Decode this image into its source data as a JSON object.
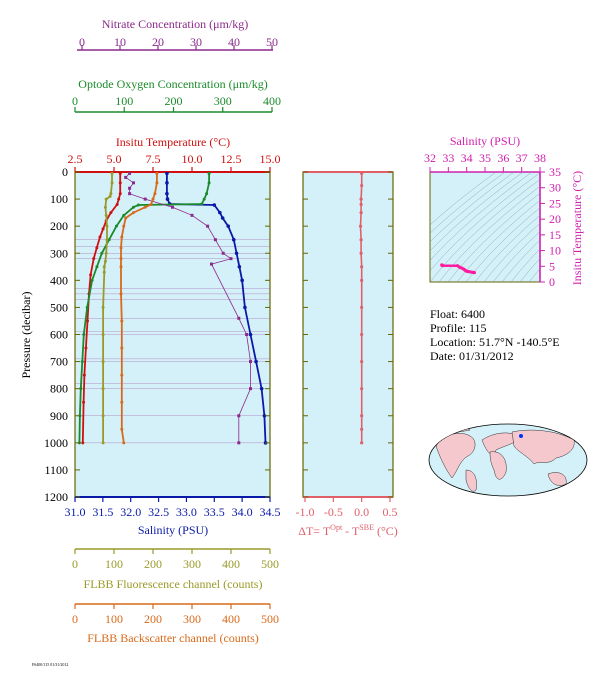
{
  "colors": {
    "plot_bg": "#d4f0f8",
    "nitrate": "#8b2a8b",
    "oxygen": "#1a8a2a",
    "temperature": "#d01010",
    "salinity": "#0a1aa8",
    "fluorescence": "#9a9a2a",
    "backscatter": "#d86a1a",
    "ts_axis": "#d020b0",
    "dt": "#e0606a",
    "land": "#f4c8cc",
    "frame": "#666600"
  },
  "axes": {
    "nitrate": {
      "label": "Nitrate Concentration (μm/kg)",
      "ticks": [
        "0",
        "10",
        "20",
        "30",
        "40",
        "50"
      ]
    },
    "oxygen": {
      "label": "Optode Oxygen Concentration (μm/kg)",
      "ticks": [
        "0",
        "100",
        "200",
        "300",
        "400"
      ]
    },
    "temperature": {
      "label": "Insitu Temperature (°C)",
      "ticks": [
        "2.5",
        "5.0",
        "7.5",
        "10.0",
        "12.5",
        "15.0"
      ]
    },
    "pressure": {
      "label": "Pressure (decibar)",
      "ticks": [
        "0",
        "100",
        "200",
        "300",
        "400",
        "500",
        "600",
        "700",
        "800",
        "900",
        "1000",
        "1100",
        "1200"
      ]
    },
    "salinity": {
      "label": "Salinity (PSU)",
      "ticks": [
        "31.0",
        "31.5",
        "32.0",
        "32.5",
        "33.0",
        "33.5",
        "34.0",
        "34.5"
      ]
    },
    "fluorescence": {
      "label": "FLBB Fluorescence channel (counts)",
      "ticks": [
        "0",
        "100",
        "200",
        "300",
        "400",
        "500"
      ]
    },
    "backscatter": {
      "label": "FLBB Backscatter channel (counts)",
      "ticks": [
        "0",
        "100",
        "200",
        "300",
        "400",
        "500"
      ]
    },
    "dt": {
      "label_main": "ΔT= T",
      "sup1": "Opt",
      "label_mid": " - T",
      "sup2": "SBE",
      "label_unit": " (°C)",
      "ticks": [
        "-1.0",
        "-0.5",
        "0.0",
        "0.5"
      ]
    },
    "ts_salinity": {
      "label": "Salinity (PSU)",
      "ticks": [
        "32",
        "33",
        "34",
        "35",
        "36",
        "37",
        "38"
      ]
    },
    "ts_temperature": {
      "label": "Insitu Temperature (°C)",
      "ticks": [
        "0",
        "5",
        "10",
        "15",
        "20",
        "25",
        "30",
        "35"
      ]
    }
  },
  "info": {
    "float": "Float:  6400",
    "profile": "Profile:  115",
    "location": "Location:  51.7°N  -140.5°E",
    "date": "Date:  01/31/2012"
  },
  "footer": "F6400/115 01/31/2012",
  "chart_data": {
    "type": "line",
    "pressure_range": [
      0,
      1200
    ],
    "series": [
      {
        "name": "Insitu Temperature (°C)",
        "x": [
          5.4,
          5.4,
          5.4,
          5.3,
          5.2,
          4.8,
          4.5,
          4.3,
          4.1,
          3.9,
          3.7,
          3.5,
          3.4,
          3.3,
          3.2,
          3.1,
          3.05,
          3.0
        ],
        "p": [
          5,
          40,
          80,
          100,
          120,
          150,
          180,
          210,
          240,
          280,
          320,
          380,
          450,
          550,
          650,
          750,
          850,
          1000
        ]
      },
      {
        "name": "Salinity (PSU)",
        "x": [
          32.65,
          32.65,
          32.65,
          32.66,
          32.7,
          33.5,
          33.6,
          33.65,
          33.75,
          33.85,
          33.9,
          33.95,
          34.0,
          34.05,
          34.15,
          34.25,
          34.35,
          34.4,
          34.42
        ],
        "p": [
          5,
          40,
          80,
          100,
          118,
          122,
          150,
          170,
          200,
          250,
          300,
          350,
          400,
          500,
          600,
          700,
          800,
          900,
          1000
        ]
      },
      {
        "name": "Optode Oxygen Concentration (μm/kg)",
        "x": [
          275,
          275,
          270,
          265,
          260,
          130,
          120,
          100,
          85,
          70,
          55,
          45,
          35,
          25,
          18,
          15,
          12,
          10,
          9
        ],
        "p": [
          5,
          40,
          80,
          100,
          118,
          122,
          130,
          160,
          200,
          250,
          300,
          350,
          400,
          500,
          600,
          700,
          800,
          900,
          1000
        ]
      },
      {
        "name": "Nitrate Concentration (μm/kg)",
        "x": [
          14,
          13,
          15,
          14,
          14,
          18,
          25,
          30,
          34,
          36,
          38,
          40,
          35,
          42,
          44,
          45,
          45,
          42,
          42
        ],
        "p": [
          5,
          20,
          40,
          60,
          80,
          100,
          130,
          160,
          200,
          250,
          300,
          320,
          340,
          540,
          600,
          700,
          800,
          900,
          1000
        ]
      },
      {
        "name": "FLBB Fluorescence channel (counts)",
        "x": [
          95,
          95,
          92,
          90,
          80,
          78,
          80,
          82,
          82,
          80,
          78,
          75,
          75,
          72,
          72,
          72,
          72,
          72,
          72
        ],
        "p": [
          5,
          40,
          80,
          90,
          100,
          130,
          160,
          200,
          250,
          300,
          330,
          350,
          370,
          500,
          600,
          700,
          800,
          900,
          1000
        ]
      },
      {
        "name": "FLBB Backscatter channel (counts)",
        "x": [
          210,
          210,
          205,
          200,
          195,
          180,
          150,
          130,
          125,
          120,
          118,
          118,
          118,
          118,
          120,
          120,
          120,
          120,
          120,
          125
        ],
        "p": [
          5,
          40,
          80,
          100,
          120,
          130,
          150,
          170,
          200,
          240,
          280,
          320,
          350,
          450,
          550,
          650,
          750,
          850,
          950,
          1000
        ]
      },
      {
        "name": "ΔT",
        "x": [
          0,
          0,
          -0.01,
          -0.01,
          -0.01,
          -0.02,
          -0.01,
          -0.01,
          0,
          0,
          0,
          0,
          0,
          0,
          0,
          0,
          0
        ],
        "p": [
          5,
          50,
          100,
          120,
          150,
          200,
          250,
          300,
          350,
          400,
          500,
          600,
          700,
          800,
          900,
          950,
          1000
        ]
      }
    ]
  }
}
